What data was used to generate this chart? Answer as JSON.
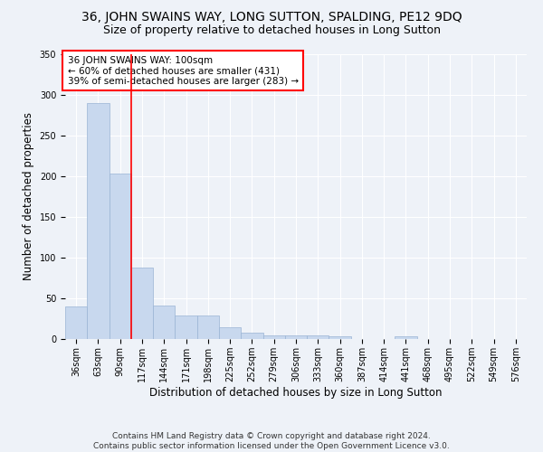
{
  "title": "36, JOHN SWAINS WAY, LONG SUTTON, SPALDING, PE12 9DQ",
  "subtitle": "Size of property relative to detached houses in Long Sutton",
  "xlabel": "Distribution of detached houses by size in Long Sutton",
  "ylabel": "Number of detached properties",
  "categories": [
    "36sqm",
    "63sqm",
    "90sqm",
    "117sqm",
    "144sqm",
    "171sqm",
    "198sqm",
    "225sqm",
    "252sqm",
    "279sqm",
    "306sqm",
    "333sqm",
    "360sqm",
    "387sqm",
    "414sqm",
    "441sqm",
    "468sqm",
    "495sqm",
    "522sqm",
    "549sqm",
    "576sqm"
  ],
  "values": [
    40,
    290,
    203,
    88,
    41,
    29,
    29,
    15,
    8,
    5,
    5,
    4,
    3,
    0,
    0,
    3,
    0,
    0,
    0,
    0,
    0
  ],
  "bar_color": "#c8d8ee",
  "bar_edgecolor": "#9ab4d4",
  "redline_x": 2.5,
  "redline_label": "36 JOHN SWAINS WAY: 100sqm",
  "annotation_line1": "← 60% of detached houses are smaller (431)",
  "annotation_line2": "39% of semi-detached houses are larger (283) →",
  "annotation_box_color": "white",
  "annotation_box_edgecolor": "red",
  "redline_color": "red",
  "ylim": [
    0,
    350
  ],
  "yticks": [
    0,
    50,
    100,
    150,
    200,
    250,
    300,
    350
  ],
  "footer1": "Contains HM Land Registry data © Crown copyright and database right 2024.",
  "footer2": "Contains public sector information licensed under the Open Government Licence v3.0.",
  "background_color": "#eef2f8",
  "grid_color": "white",
  "title_fontsize": 10,
  "subtitle_fontsize": 9,
  "axis_label_fontsize": 8.5,
  "tick_fontsize": 7,
  "footer_fontsize": 6.5,
  "annotation_fontsize": 7.5
}
